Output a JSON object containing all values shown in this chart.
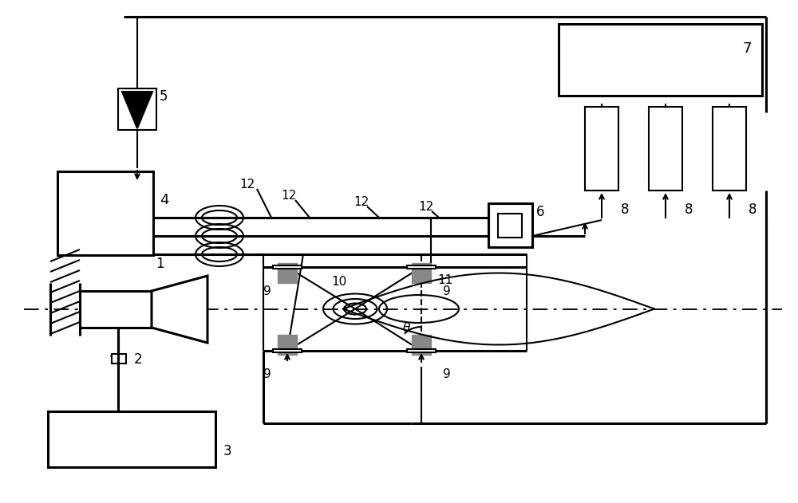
{
  "fig_width": 10.0,
  "fig_height": 6.31,
  "dpi": 100,
  "bg_color": "#ffffff",
  "lc": "#000000",
  "lw": 1.5,
  "tlw": 2.2,
  "gc": "#888888"
}
